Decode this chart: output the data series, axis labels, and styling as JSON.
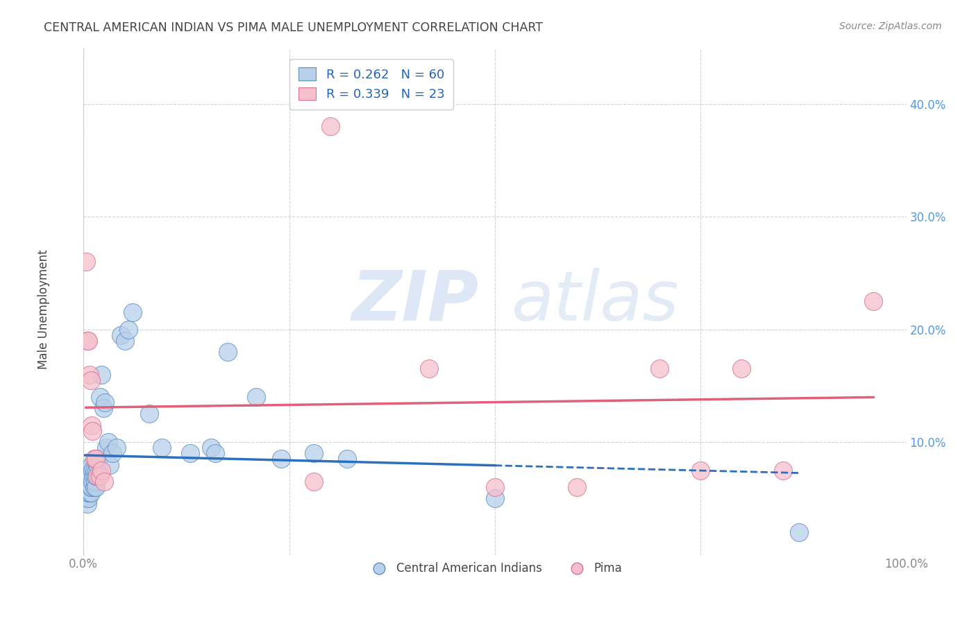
{
  "title": "CENTRAL AMERICAN INDIAN VS PIMA MALE UNEMPLOYMENT CORRELATION CHART",
  "source": "Source: ZipAtlas.com",
  "ylabel": "Male Unemployment",
  "watermark_zip": "ZIP",
  "watermark_atlas": "atlas",
  "legend_blue_r": "R = 0.262",
  "legend_blue_n": "N = 60",
  "legend_pink_r": "R = 0.339",
  "legend_pink_n": "N = 23",
  "legend_label_blue": "Central American Indians",
  "legend_label_pink": "Pima",
  "xlim": [
    0,
    1.0
  ],
  "ylim": [
    0,
    0.45
  ],
  "xticks": [
    0,
    0.25,
    0.5,
    0.75,
    1.0
  ],
  "xticklabels": [
    "0.0%",
    "",
    "",
    "",
    "100.0%"
  ],
  "yticks": [
    0.0,
    0.1,
    0.2,
    0.3,
    0.4
  ],
  "yticklabels": [
    "",
    "10.0%",
    "20.0%",
    "30.0%",
    "40.0%"
  ],
  "blue_dots_x": [
    0.002,
    0.003,
    0.003,
    0.004,
    0.004,
    0.004,
    0.005,
    0.005,
    0.005,
    0.005,
    0.006,
    0.006,
    0.006,
    0.007,
    0.007,
    0.007,
    0.008,
    0.008,
    0.009,
    0.009,
    0.009,
    0.01,
    0.01,
    0.011,
    0.011,
    0.012,
    0.013,
    0.013,
    0.014,
    0.015,
    0.015,
    0.016,
    0.017,
    0.018,
    0.019,
    0.02,
    0.022,
    0.024,
    0.026,
    0.028,
    0.03,
    0.032,
    0.035,
    0.04,
    0.045,
    0.05,
    0.055,
    0.06,
    0.08,
    0.095,
    0.13,
    0.155,
    0.16,
    0.175,
    0.21,
    0.24,
    0.28,
    0.32,
    0.5,
    0.87
  ],
  "blue_dots_y": [
    0.06,
    0.055,
    0.07,
    0.05,
    0.06,
    0.065,
    0.045,
    0.055,
    0.06,
    0.07,
    0.05,
    0.055,
    0.065,
    0.06,
    0.07,
    0.075,
    0.055,
    0.065,
    0.055,
    0.06,
    0.07,
    0.06,
    0.08,
    0.065,
    0.075,
    0.07,
    0.06,
    0.075,
    0.065,
    0.06,
    0.07,
    0.075,
    0.08,
    0.085,
    0.07,
    0.14,
    0.16,
    0.13,
    0.135,
    0.095,
    0.1,
    0.08,
    0.09,
    0.095,
    0.195,
    0.19,
    0.2,
    0.215,
    0.125,
    0.095,
    0.09,
    0.095,
    0.09,
    0.18,
    0.14,
    0.085,
    0.09,
    0.085,
    0.05,
    0.02
  ],
  "pink_dots_x": [
    0.003,
    0.005,
    0.006,
    0.007,
    0.009,
    0.01,
    0.011,
    0.013,
    0.015,
    0.017,
    0.02,
    0.022,
    0.025,
    0.28,
    0.3,
    0.42,
    0.5,
    0.6,
    0.7,
    0.75,
    0.8,
    0.85,
    0.96
  ],
  "pink_dots_y": [
    0.26,
    0.19,
    0.19,
    0.16,
    0.155,
    0.115,
    0.11,
    0.085,
    0.085,
    0.07,
    0.07,
    0.075,
    0.065,
    0.065,
    0.38,
    0.165,
    0.06,
    0.06,
    0.165,
    0.075,
    0.165,
    0.075,
    0.225
  ],
  "blue_dot_fill": "#b8d0ea",
  "blue_dot_edge": "#5b8ec4",
  "pink_dot_fill": "#f5bfcd",
  "pink_dot_edge": "#d97090",
  "blue_line_color": "#2c6fbe",
  "pink_line_color": "#e0607a",
  "bg_color": "#ffffff",
  "grid_color": "#cccccc",
  "title_color": "#444444",
  "axis_label_color": "#888888",
  "ytick_color": "#5599dd",
  "xtick_color": "#888888"
}
